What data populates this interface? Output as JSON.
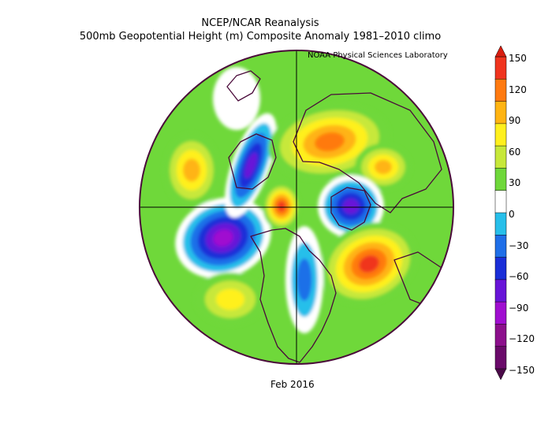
{
  "header": {
    "title": "NCEP/NCAR Reanalysis",
    "subtitle": "500mb Geopotential Height (m) Composite Anomaly 1981–2010 climo",
    "credit": "NOAA Physical Sciences Laboratory"
  },
  "map": {
    "projection": "north-polar-stereographic",
    "variable": "500mb geopotential height anomaly",
    "features": [
      {
        "sign": "positive",
        "region": "central Pacific / Aleutians",
        "approx_m": 90
      },
      {
        "sign": "negative",
        "region": "western Pacific / east of Japan",
        "approx_m": -130
      },
      {
        "sign": "negative",
        "region": "Alaska - Bering",
        "approx_m": -100
      },
      {
        "sign": "positive",
        "region": "Eastern Siberia - Russia",
        "approx_m": 130
      },
      {
        "sign": "positive",
        "region": "Arctic / northern Canada",
        "approx_m": 140
      },
      {
        "sign": "negative",
        "region": "Greenland - Iceland - northern Europe",
        "approx_m": -120
      },
      {
        "sign": "positive",
        "region": "central North Atlantic",
        "approx_m": 140
      },
      {
        "sign": "negative",
        "region": "eastern North America",
        "approx_m": -50
      },
      {
        "sign": "positive",
        "region": "western North America",
        "approx_m": 60
      }
    ]
  },
  "colorbar": {
    "ticks": [
      "150",
      "120",
      "90",
      "60",
      "30",
      "0",
      "−30",
      "−60",
      "−90",
      "−120",
      "−150"
    ],
    "colors": [
      "#f0341e",
      "#ff7a10",
      "#ffb412",
      "#fff01e",
      "#c7e83a",
      "#6fd83a",
      "#ffffff",
      "#27bfea",
      "#1f6fe8",
      "#1a2ed8",
      "#6814d8",
      "#a00ed0",
      "#8c0f8c",
      "#6a0a6a"
    ]
  },
  "caption": "Feb 2016"
}
